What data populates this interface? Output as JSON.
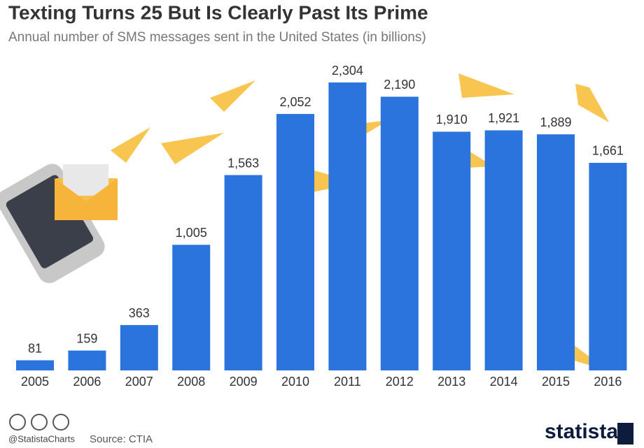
{
  "chart_data": {
    "type": "bar",
    "title": "Texting Turns 25 But Is Clearly Past Its Prime",
    "subtitle": "Annual number of SMS messages sent in the United States (in billions)",
    "categories": [
      "2005",
      "2006",
      "2007",
      "2008",
      "2009",
      "2010",
      "2011",
      "2012",
      "2013",
      "2014",
      "2015",
      "2016"
    ],
    "values": [
      81,
      159,
      363,
      1005,
      1563,
      2052,
      2304,
      2190,
      1910,
      1921,
      1889,
      1661
    ],
    "value_labels": [
      "81",
      "159",
      "363",
      "1,005",
      "1,563",
      "2,052",
      "2,304",
      "2,190",
      "1,910",
      "1,921",
      "1,889",
      "1,661"
    ],
    "color": "#2c74dd",
    "credit": "@StatistaCharts",
    "source": "Source: CTIA",
    "brand": "statista"
  }
}
